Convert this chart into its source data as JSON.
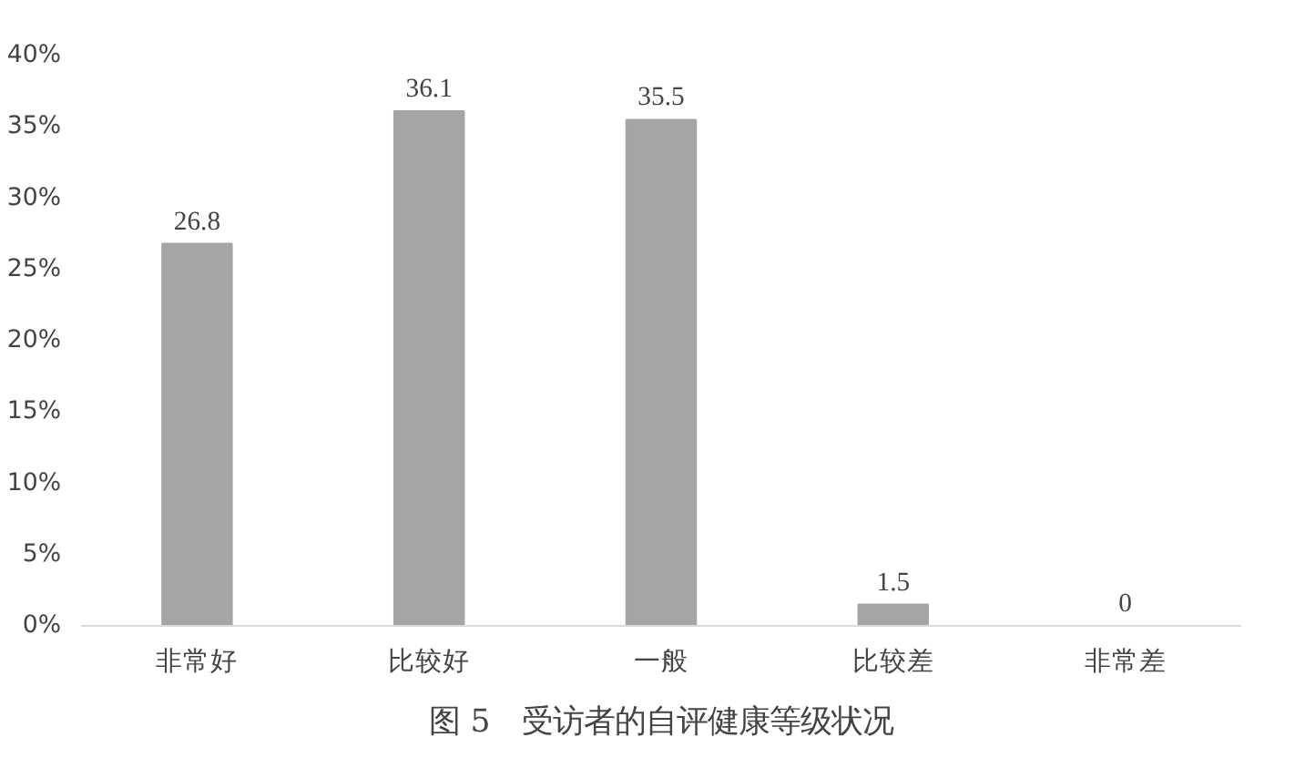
{
  "chart_data": {
    "type": "bar",
    "categories": [
      "非常好",
      "比较好",
      "一般",
      "比较差",
      "非常差"
    ],
    "values": [
      26.8,
      36.1,
      35.5,
      1.5,
      0
    ],
    "color": "#a5a5a5",
    "data_labels": true,
    "ylim": [
      0,
      40
    ],
    "yticks": [
      {
        "value": 0,
        "label": "0%"
      },
      {
        "value": 5,
        "label": "5%"
      },
      {
        "value": 10,
        "label": "10%"
      },
      {
        "value": 15,
        "label": "15%"
      },
      {
        "value": 20,
        "label": "20%"
      },
      {
        "value": 25,
        "label": "25%"
      },
      {
        "value": 30,
        "label": "30%"
      },
      {
        "value": 35,
        "label": "35%"
      },
      {
        "value": 40,
        "label": "40%"
      }
    ],
    "grid": false,
    "annotations": [
      "图 5　受访者的自评健康等级状况"
    ]
  }
}
